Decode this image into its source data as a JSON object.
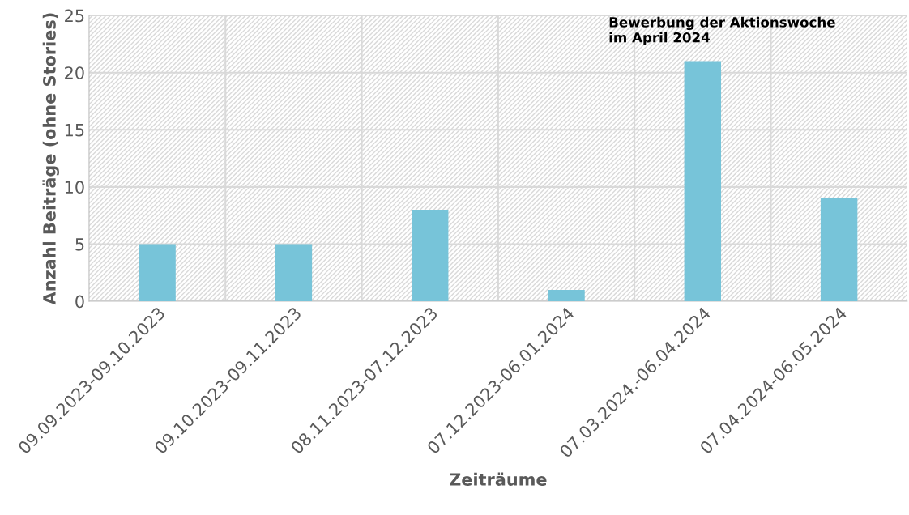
{
  "chart_data": {
    "type": "bar",
    "xlabel": "Zeiträume",
    "ylabel": "Anzahl Beiträge (ohne Stories)",
    "categories": [
      "09.09.2023-09.10.2023",
      "09.10.2023-09.11.2023",
      "08.11.2023-07.12.2023",
      "07.12.2023-06.01.2024",
      "07.03.2024.-06.04.2024",
      "07.04.2024-06.05.2024"
    ],
    "values": [
      5,
      5,
      8,
      1,
      21,
      9
    ],
    "color": "#77c4d9",
    "ylim": [
      0,
      25
    ],
    "yticks": [
      0,
      5,
      10,
      15,
      20,
      25
    ],
    "grid": true,
    "annotations": [
      "Bewerbung der Aktionswoche\nim April 2024"
    ]
  }
}
